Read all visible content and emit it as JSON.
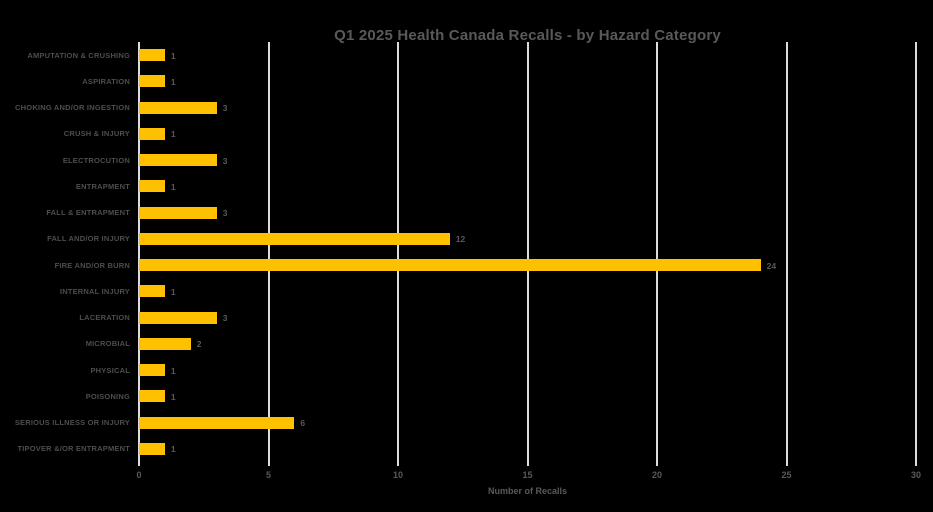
{
  "chart_data": {
    "type": "bar",
    "orientation": "horizontal",
    "title": "Q1 2025 Health Canada Recalls - by Hazard Category",
    "xlabel": "Number of Recalls",
    "ylabel": "",
    "categories": [
      "AMPUTATION & CRUSHING",
      "ASPIRATION",
      "CHOKING AND/OR INGESTION",
      "CRUSH & INJURY",
      "ELECTROCUTION",
      "ENTRAPMENT",
      "FALL & ENTRAPMENT",
      "FALL AND/OR INJURY",
      "FIRE AND/OR BURN",
      "INTERNAL INJURY",
      "LACERATION",
      "MICROBIAL",
      "PHYSICAL",
      "POISONING",
      "SERIOUS ILLNESS OR INJURY",
      "TIPOVER &/OR ENTRAPMENT"
    ],
    "values": [
      1,
      1,
      3,
      1,
      3,
      1,
      3,
      12,
      24,
      1,
      3,
      2,
      1,
      1,
      6,
      1
    ],
    "xlim": [
      0,
      30
    ],
    "x_ticks": [
      0,
      5,
      10,
      15,
      20,
      25,
      30
    ],
    "grid": true,
    "legend": false,
    "data_labels": true,
    "colors": {
      "background": "#000000",
      "bar": "#FFC000",
      "gridline": "#DCDCDC",
      "title_text": "#595959",
      "category_text": "#4D4D4D",
      "value_text": "#595959",
      "tick_text": "#595959",
      "axis_label_text": "#595959"
    }
  }
}
